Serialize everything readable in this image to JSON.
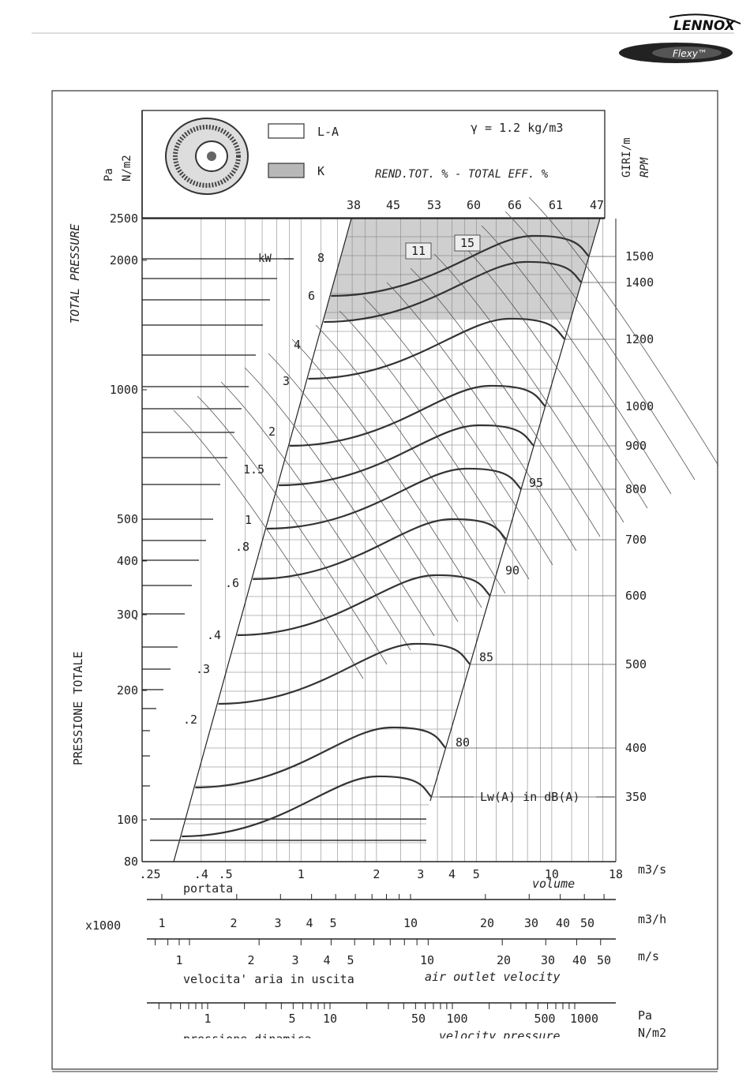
{
  "header": {
    "brand_logo": "LENNOX",
    "product_badge": "Flexy™"
  },
  "chart_data": {
    "type": "line",
    "title": "",
    "density_note": "γ = 1.2 kg/m3",
    "efficiency_title": "REND.TOT. % - TOTAL EFF. %",
    "legend": [
      {
        "label": "L-A",
        "color": "#ffffff"
      },
      {
        "label": "K",
        "color": "#b8b8b8"
      }
    ],
    "y_axis": {
      "scale": "log",
      "range": [
        80,
        2500
      ],
      "unit_top": "Pa",
      "unit_sub": "N/m2",
      "label_en": "TOTAL PRESSURE",
      "label_it": "PRESSIONE TOTALE",
      "ticks": [
        {
          "label": "2500",
          "value": 2500
        },
        {
          "label": "2000",
          "value": 2000
        },
        {
          "label": "1000",
          "value": 1000
        },
        {
          "label": "500",
          "value": 500
        },
        {
          "label": "400",
          "value": 400
        },
        {
          "label": "30Q",
          "value": 300
        },
        {
          "label": "200",
          "value": 200
        },
        {
          "label": "100",
          "value": 100
        },
        {
          "label": "80",
          "value": 80
        }
      ]
    },
    "rpm_axis": {
      "unit_top": "GIRI/m",
      "unit_sub": "RPM",
      "values": [
        1500,
        1400,
        1200,
        1000,
        900,
        800,
        700,
        600,
        500,
        400,
        350
      ]
    },
    "efficiency_values": [
      "38",
      "45",
      "53",
      "60",
      "66",
      "61",
      "47"
    ],
    "kw_unit": "kW",
    "power_labels": [
      {
        "label": "8",
        "kw": 8
      },
      {
        "label": "6",
        "kw": 6
      },
      {
        "label": "4",
        "kw": 4
      },
      {
        "label": "3",
        "kw": 3
      },
      {
        "label": "2",
        "kw": 2
      },
      {
        "label": "1.5",
        "kw": 1.5
      },
      {
        "label": "1",
        "kw": 1
      },
      {
        "label": ".8",
        "kw": 0.8
      },
      {
        "label": ".6",
        "kw": 0.6
      },
      {
        "label": ".4",
        "kw": 0.4
      },
      {
        "label": ".3",
        "kw": 0.3
      },
      {
        "label": ".2",
        "kw": 0.2
      }
    ],
    "boxed_power_labels": [
      "11",
      "15"
    ],
    "sound_labels": [
      {
        "label": "95",
        "db": 95
      },
      {
        "label": "90",
        "db": 90
      },
      {
        "label": "85",
        "db": 85
      },
      {
        "label": "80",
        "db": 80
      }
    ],
    "sound_caption": "Lw(A)  in dB(A)",
    "x_axis_volume": {
      "scale": "log",
      "range": [
        0.25,
        18
      ],
      "unit": "m3/s",
      "label_it": "portata",
      "label_en": "volume",
      "ticks": [
        {
          "label": ".25",
          "value": 0.25
        },
        {
          "label": ".4",
          "value": 0.4
        },
        {
          "label": ".5",
          "value": 0.5
        },
        {
          "label": "1",
          "value": 1
        },
        {
          "label": "2",
          "value": 2
        },
        {
          "label": "3",
          "value": 3
        },
        {
          "label": "4",
          "value": 4
        },
        {
          "label": "5",
          "value": 5
        },
        {
          "label": "10",
          "value": 10
        },
        {
          "label": "18",
          "value": 18
        }
      ]
    },
    "x_axis_flow_h": {
      "unit": "m3/h",
      "multiplier": "x1000",
      "ticks": [
        "1",
        "2",
        "3",
        "4",
        "5",
        "10",
        "20",
        "30",
        "40",
        "50"
      ]
    },
    "x_axis_velocity": {
      "unit": "m/s",
      "label_it": "velocita' aria in uscita",
      "label_en": "air outlet velocity",
      "ticks": [
        "1",
        "2",
        "3",
        "4",
        "5",
        "10",
        "20",
        "30",
        "40",
        "50"
      ]
    },
    "x_axis_dyn_pressure": {
      "unit_top": "Pa",
      "unit_sub": "N/m2",
      "label_it": "pressione dinamica",
      "label_en": "velocity pressure",
      "ticks": [
        "1",
        "5",
        "10",
        "50",
        "100",
        "500",
        "1000"
      ]
    },
    "grid": true
  }
}
